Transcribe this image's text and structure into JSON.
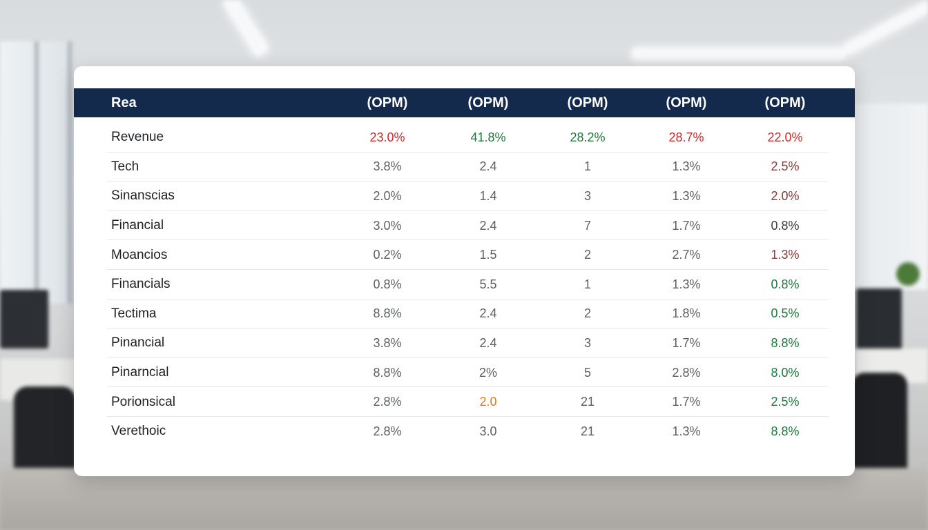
{
  "table": {
    "headers": [
      "Rea",
      "(OPM)",
      "(OPM)",
      "(OPM)",
      "(OPM)",
      "(OPM)"
    ],
    "rows": [
      {
        "label": "Revenue",
        "values": [
          "23.0%",
          "41.8%",
          "28.2%",
          "28.7%",
          "22.0%"
        ],
        "tones": [
          "red",
          "green",
          "green",
          "red",
          "red"
        ]
      },
      {
        "label": "Tech",
        "values": [
          "3.8%",
          "2.4",
          "1",
          "1.3%",
          "2.5%"
        ],
        "tones": [
          "",
          "",
          "",
          "",
          "maroon"
        ]
      },
      {
        "label": "Sinanscias",
        "values": [
          "2.0%",
          "1.4",
          "3",
          "1.3%",
          "2.0%"
        ],
        "tones": [
          "",
          "",
          "",
          "",
          "maroon"
        ]
      },
      {
        "label": "Financial",
        "values": [
          "3.0%",
          "2.4",
          "7",
          "1.7%",
          "0.8%"
        ],
        "tones": [
          "",
          "",
          "",
          "",
          "dark"
        ]
      },
      {
        "label": "Moancios",
        "values": [
          "0.2%",
          "1.5",
          "2",
          "2.7%",
          "1.3%"
        ],
        "tones": [
          "",
          "",
          "",
          "",
          "maroon"
        ]
      },
      {
        "label": "Financials",
        "values": [
          "0.8%",
          "5.5",
          "1",
          "1.3%",
          "0.8%"
        ],
        "tones": [
          "",
          "",
          "",
          "",
          "green"
        ]
      },
      {
        "label": "Tectima",
        "values": [
          "8.8%",
          "2.4",
          "2",
          "1.8%",
          "0.5%"
        ],
        "tones": [
          "",
          "",
          "",
          "",
          "green"
        ]
      },
      {
        "label": "Pinancial",
        "values": [
          "3.8%",
          "2.4",
          "3",
          "1.7%",
          "8.8%"
        ],
        "tones": [
          "",
          "",
          "",
          "",
          "green"
        ]
      },
      {
        "label": "Pinarncial",
        "values": [
          "8.8%",
          "2%",
          "5",
          "2.8%",
          "8.0%"
        ],
        "tones": [
          "",
          "",
          "",
          "",
          "green"
        ]
      },
      {
        "label": "Porionsical",
        "values": [
          "2.8%",
          "2.0",
          "21",
          "1.7%",
          "2.5%"
        ],
        "tones": [
          "",
          "orange",
          "",
          "",
          "green"
        ]
      },
      {
        "label": "Verethoic",
        "values": [
          "2.8%",
          "3.0",
          "21",
          "1.3%",
          "8.8%"
        ],
        "tones": [
          "",
          "",
          "",
          "",
          "green"
        ]
      }
    ]
  }
}
